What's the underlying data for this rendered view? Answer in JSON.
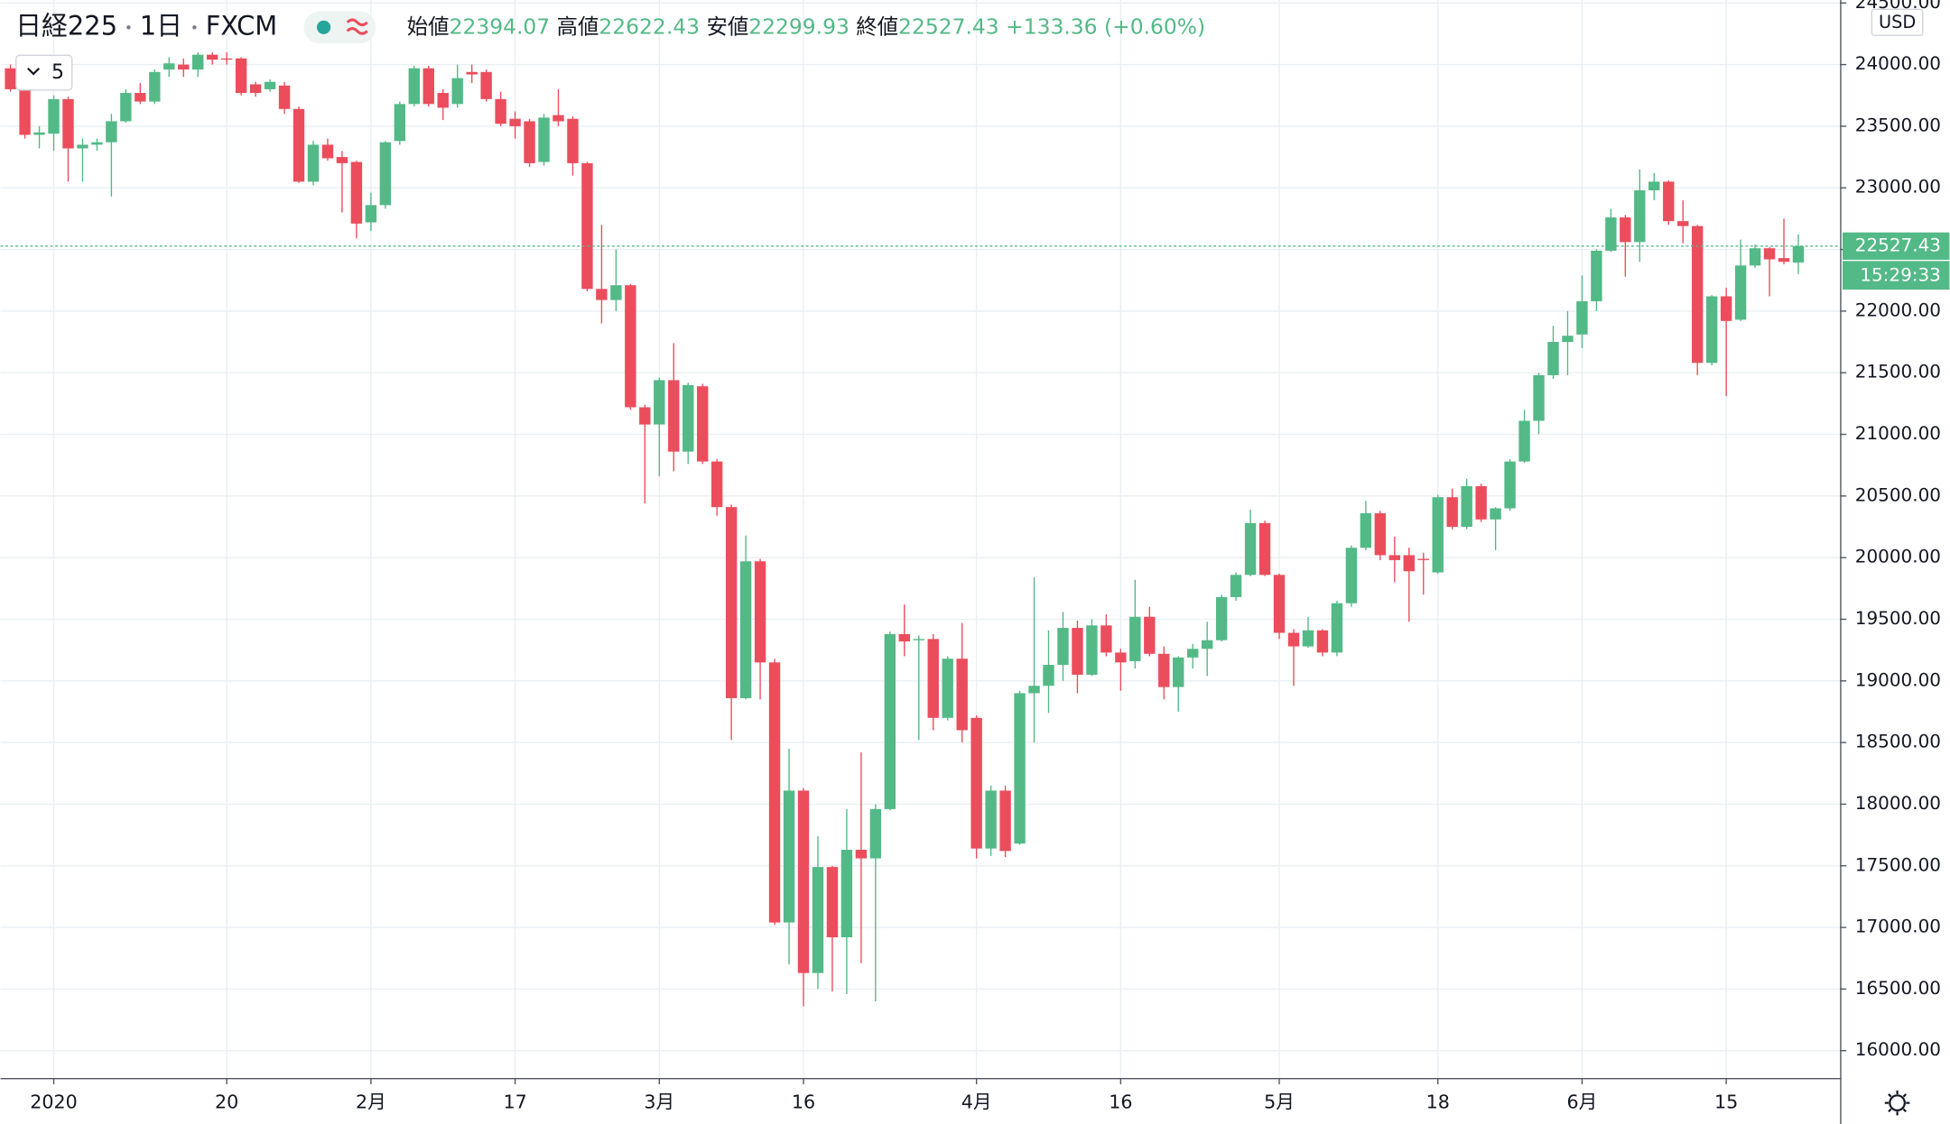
{
  "chart_data": {
    "type": "candlestick",
    "symbol": "日経225",
    "interval": "1日",
    "exchange": "FXCM",
    "ohlc_labels": [
      "始値",
      "高値",
      "安値",
      "終値"
    ],
    "change": {
      "value": 133.36,
      "label": "+133.36"
    },
    "change_pct": {
      "value": 0.6,
      "label": "(+0.60%)"
    },
    "currency": "USD",
    "countdown": "15:29:33",
    "indicator_count": 5,
    "up_color": "#53b987",
    "down_color": "#eb4d5c",
    "ylim": [
      15778,
      24524
    ],
    "yticks": [
      {
        "value": 16000,
        "label": "16000.00"
      },
      {
        "value": 16500,
        "label": "16500.00"
      },
      {
        "value": 17000,
        "label": "17000.00"
      },
      {
        "value": 17500,
        "label": "17500.00"
      },
      {
        "value": 18000,
        "label": "18000.00"
      },
      {
        "value": 18500,
        "label": "18500.00"
      },
      {
        "value": 19000,
        "label": "19000.00"
      },
      {
        "value": 19500,
        "label": "19500.00"
      },
      {
        "value": 20000,
        "label": "20000.00"
      },
      {
        "value": 20500,
        "label": "20500.00"
      },
      {
        "value": 21000,
        "label": "21000.00"
      },
      {
        "value": 21500,
        "label": "21500.00"
      },
      {
        "value": 22000,
        "label": "22000.00"
      },
      {
        "value": 22500,
        "label": "22500.00"
      },
      {
        "value": 23000,
        "label": "23000.00"
      },
      {
        "value": 23500,
        "label": "23500.00"
      },
      {
        "value": 24000,
        "label": "24000.00"
      },
      {
        "value": 24500,
        "label": "24500.00"
      }
    ],
    "categories": [
      null,
      null,
      null,
      "2020",
      null,
      null,
      null,
      null,
      null,
      null,
      null,
      null,
      null,
      null,
      null,
      "20",
      null,
      null,
      null,
      null,
      null,
      null,
      null,
      null,
      null,
      "2月",
      null,
      null,
      null,
      null,
      null,
      null,
      null,
      null,
      null,
      "17",
      null,
      null,
      null,
      null,
      null,
      null,
      null,
      null,
      null,
      "3月",
      null,
      null,
      null,
      null,
      null,
      null,
      null,
      null,
      null,
      "16",
      null,
      null,
      null,
      null,
      null,
      null,
      null,
      null,
      null,
      null,
      null,
      "4月",
      null,
      null,
      null,
      null,
      null,
      null,
      null,
      null,
      null,
      "16",
      null,
      null,
      null,
      null,
      null,
      null,
      null,
      null,
      null,
      null,
      "5月",
      null,
      null,
      null,
      null,
      null,
      null,
      null,
      null,
      null,
      null,
      "18",
      null,
      null,
      null,
      null,
      null,
      null,
      null,
      null,
      null,
      "6月",
      null,
      null,
      null,
      null,
      null,
      null,
      null,
      null,
      null,
      "15",
      null,
      null,
      null,
      null,
      null
    ],
    "open": [
      23970,
      23950,
      23430,
      23440,
      23720,
      23320,
      23350,
      23370,
      23540,
      23770,
      23700,
      23960,
      24000,
      23960,
      24080,
      24050,
      24050,
      23840,
      23800,
      23830,
      23640,
      23050,
      23350,
      23250,
      23210,
      22720,
      22860,
      23380,
      23680,
      23970,
      23770,
      23680,
      23940,
      23940,
      23720,
      23560,
      23540,
      23210,
      23590,
      23560,
      23200,
      22180,
      22090,
      22210,
      21220,
      21080,
      21440,
      20860,
      21390,
      20780,
      20410,
      18860,
      19970,
      19150,
      17040,
      18110,
      16630,
      17490,
      16920,
      17630,
      17560,
      17960,
      19380,
      19330,
      19340,
      18700,
      19180,
      18700,
      17640,
      18110,
      17680,
      18900,
      18960,
      19130,
      19430,
      19050,
      19450,
      19230,
      19160,
      19520,
      19220,
      18950,
      19190,
      19260,
      19330,
      19680,
      19860,
      20280,
      19860,
      19390,
      19280,
      19410,
      19230,
      19630,
      20080,
      20360,
      20020,
      20020,
      19990,
      19880,
      20490,
      20250,
      20580,
      20310,
      20400,
      20780,
      21110,
      21480,
      21750,
      21810,
      22080,
      22490,
      22760,
      22560,
      22980,
      23050,
      22730,
      22690,
      21580,
      22120,
      21930,
      22370,
      22510,
      22430,
      22394.07
    ],
    "high": [
      24000,
      23980,
      23500,
      23750,
      23740,
      23400,
      23400,
      23600,
      23800,
      23850,
      23960,
      24060,
      24050,
      24100,
      24100,
      24100,
      24060,
      23860,
      23880,
      23860,
      23660,
      23380,
      23400,
      23300,
      23220,
      22960,
      23380,
      23700,
      23990,
      23990,
      23800,
      24000,
      24000,
      23960,
      23780,
      23620,
      23560,
      23600,
      23800,
      23580,
      23210,
      22700,
      22500,
      22220,
      21240,
      21460,
      21740,
      21420,
      21410,
      20800,
      20430,
      20180,
      19990,
      19180,
      18450,
      18130,
      17740,
      17500,
      17960,
      18420,
      18000,
      19400,
      19620,
      19370,
      19380,
      19200,
      19470,
      18720,
      18150,
      18150,
      18920,
      19840,
      19410,
      19560,
      19490,
      19500,
      19540,
      19260,
      19820,
      19600,
      19280,
      19200,
      19300,
      19480,
      19700,
      19880,
      20390,
      20300,
      19870,
      19420,
      19520,
      19420,
      19650,
      20100,
      20460,
      20380,
      20170,
      20080,
      20040,
      20510,
      20560,
      20640,
      20600,
      20410,
      20800,
      21200,
      21500,
      21880,
      22000,
      22290,
      22500,
      22830,
      22780,
      23150,
      23120,
      23060,
      22900,
      22700,
      22130,
      22190,
      22580,
      22540,
      22520,
      22750,
      22622.43
    ],
    "low": [
      23780,
      23400,
      23320,
      23300,
      23050,
      23050,
      23300,
      22930,
      23530,
      23680,
      23680,
      23900,
      23900,
      23900,
      24000,
      24000,
      23750,
      23740,
      23780,
      23600,
      23040,
      23020,
      23220,
      22800,
      22590,
      22650,
      22830,
      23350,
      23660,
      23660,
      23550,
      23650,
      23850,
      23700,
      23500,
      23400,
      23170,
      23180,
      23500,
      23100,
      22160,
      21900,
      22000,
      21200,
      20440,
      20660,
      20700,
      20760,
      20760,
      20340,
      18520,
      18850,
      18850,
      17020,
      16700,
      16360,
      16500,
      16480,
      16460,
      16710,
      16400,
      17950,
      19200,
      18520,
      18600,
      18680,
      18500,
      17560,
      17580,
      17570,
      17670,
      18500,
      18740,
      19000,
      18900,
      19040,
      19200,
      18920,
      19100,
      19200,
      18850,
      18750,
      19100,
      19040,
      19320,
      19650,
      19850,
      19850,
      19340,
      18960,
      19270,
      19200,
      19200,
      19600,
      20060,
      19980,
      19800,
      19480,
      19700,
      19870,
      20230,
      20230,
      20290,
      20060,
      20380,
      20770,
      21000,
      21450,
      21480,
      21700,
      22000,
      22480,
      22280,
      22400,
      22900,
      22700,
      22550,
      21480,
      21560,
      21310,
      21920,
      22350,
      22120,
      22380,
      22299.93
    ],
    "close": [
      23800,
      23430,
      23450,
      23720,
      23320,
      23350,
      23370,
      23540,
      23770,
      23700,
      23940,
      24010,
      23960,
      24080,
      24040,
      24040,
      23770,
      23770,
      23860,
      23640,
      23050,
      23350,
      23240,
      23200,
      22710,
      22860,
      23370,
      23680,
      23970,
      23680,
      23650,
      23890,
      23920,
      23720,
      23520,
      23500,
      23200,
      23570,
      23540,
      23200,
      22180,
      22090,
      22210,
      21220,
      21080,
      21440,
      20860,
      21400,
      20780,
      20410,
      18860,
      19970,
      19150,
      17040,
      18110,
      16630,
      17490,
      16920,
      17630,
      17560,
      17960,
      19380,
      19320,
      19340,
      18700,
      19180,
      18600,
      17640,
      18110,
      17620,
      18900,
      18960,
      19130,
      19430,
      19050,
      19450,
      19230,
      19150,
      19520,
      19220,
      18950,
      19190,
      19260,
      19330,
      19680,
      19860,
      20280,
      19860,
      19390,
      19280,
      19410,
      19230,
      19630,
      20080,
      20360,
      20020,
      19980,
      19890,
      19980,
      20490,
      20250,
      20580,
      20310,
      20400,
      20780,
      21110,
      21480,
      21750,
      21800,
      22080,
      22490,
      22760,
      22560,
      22980,
      23050,
      22730,
      22690,
      21580,
      22120,
      21920,
      22370,
      22510,
      22420,
      22400,
      22527.43
    ]
  }
}
